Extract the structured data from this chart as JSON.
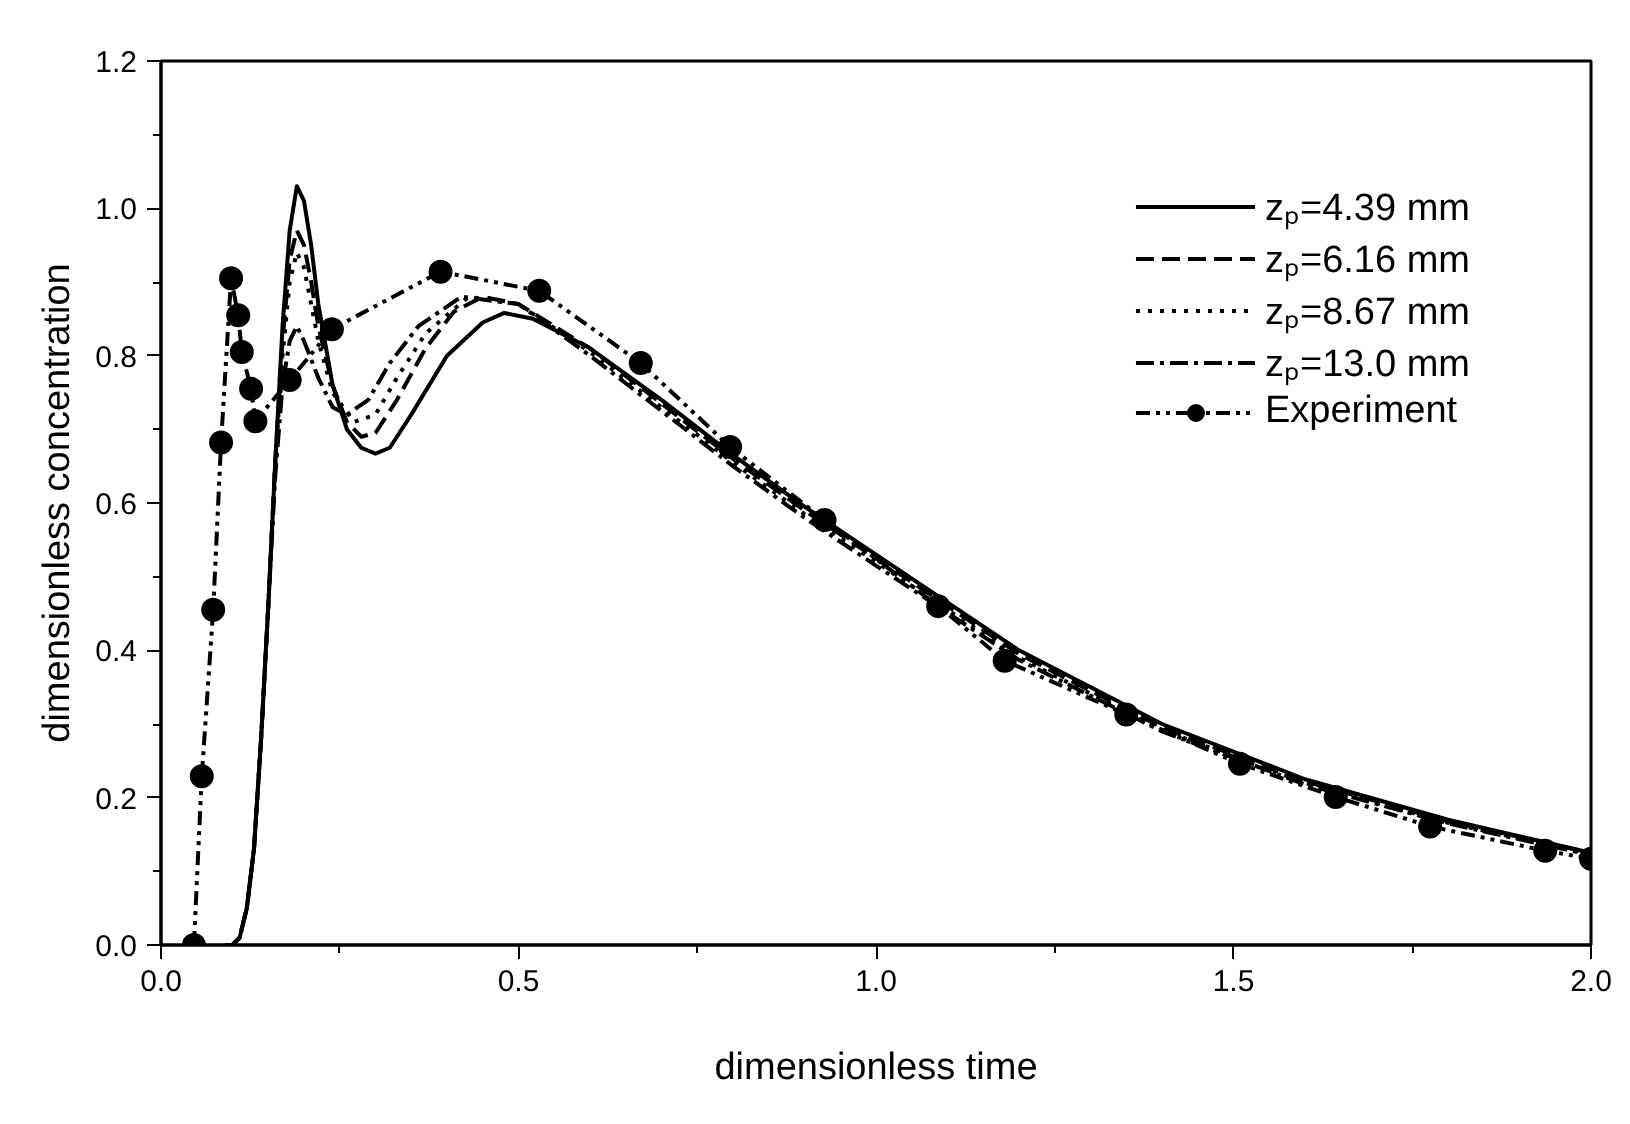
{
  "chart_data": {
    "type": "line",
    "xlabel": "dimensionless time",
    "ylabel": "dimensionless concentration",
    "xlim": [
      0,
      2.0
    ],
    "ylim": [
      0,
      1.2
    ],
    "xticks": [
      {
        "value": 0,
        "label": "0.0"
      },
      0.5,
      {
        "value": 1,
        "label": "1.0"
      },
      1.5,
      {
        "value": 2,
        "label": "2.0"
      }
    ],
    "yticks": [
      {
        "value": 0,
        "label": "0.0"
      },
      0.2,
      0.4,
      0.6,
      0.8,
      {
        "value": 1,
        "label": "1.0"
      },
      1.2
    ],
    "grid": false,
    "legend": "top right",
    "series": [
      {
        "name": "zₚ=4.39 mm",
        "color": "#000000",
        "line_style": "solid",
        "marker": "none",
        "x": [
          0.09,
          0.1,
          0.11,
          0.12,
          0.13,
          0.14,
          0.15,
          0.16,
          0.17,
          0.18,
          0.19,
          0.2,
          0.21,
          0.22,
          0.24,
          0.26,
          0.28,
          0.3,
          0.32,
          0.35,
          0.4,
          0.45,
          0.48,
          0.52,
          0.6,
          0.7,
          0.8,
          0.9,
          1.0,
          1.2,
          1.4,
          1.6,
          1.8,
          2.0
        ],
        "values": [
          0,
          0,
          0.01,
          0.05,
          0.13,
          0.28,
          0.46,
          0.66,
          0.84,
          0.97,
          1.03,
          1.01,
          0.95,
          0.87,
          0.76,
          0.7,
          0.675,
          0.667,
          0.675,
          0.72,
          0.8,
          0.845,
          0.858,
          0.85,
          0.81,
          0.74,
          0.665,
          0.595,
          0.53,
          0.4,
          0.3,
          0.225,
          0.17,
          0.125
        ]
      },
      {
        "name": "zₚ=6.16 mm",
        "color": "#000000",
        "line_style": "dashed",
        "marker": "none",
        "x": [
          0.09,
          0.1,
          0.11,
          0.12,
          0.13,
          0.14,
          0.15,
          0.16,
          0.17,
          0.18,
          0.19,
          0.2,
          0.21,
          0.22,
          0.24,
          0.26,
          0.28,
          0.3,
          0.33,
          0.37,
          0.41,
          0.45,
          0.5,
          0.6,
          0.7,
          0.8,
          0.9,
          1.0,
          1.2,
          1.4,
          1.6,
          1.8,
          2.0
        ],
        "values": [
          0,
          0,
          0.01,
          0.05,
          0.13,
          0.28,
          0.46,
          0.66,
          0.82,
          0.93,
          0.97,
          0.95,
          0.9,
          0.84,
          0.76,
          0.71,
          0.69,
          0.695,
          0.74,
          0.81,
          0.86,
          0.88,
          0.87,
          0.81,
          0.735,
          0.66,
          0.59,
          0.525,
          0.395,
          0.295,
          0.222,
          0.168,
          0.125
        ]
      },
      {
        "name": "zₚ=8.67 mm",
        "color": "#000000",
        "line_style": "dotted",
        "marker": "none",
        "x": [
          0.09,
          0.1,
          0.11,
          0.12,
          0.13,
          0.14,
          0.15,
          0.16,
          0.17,
          0.18,
          0.19,
          0.2,
          0.21,
          0.22,
          0.24,
          0.27,
          0.3,
          0.33,
          0.37,
          0.43,
          0.5,
          0.6,
          0.7,
          0.8,
          0.9,
          1.0,
          1.2,
          1.4,
          1.6,
          1.8,
          2.0
        ],
        "values": [
          0,
          0,
          0.01,
          0.05,
          0.13,
          0.28,
          0.46,
          0.66,
          0.8,
          0.9,
          0.94,
          0.92,
          0.87,
          0.82,
          0.75,
          0.71,
          0.72,
          0.77,
          0.83,
          0.88,
          0.87,
          0.805,
          0.73,
          0.655,
          0.585,
          0.52,
          0.39,
          0.292,
          0.22,
          0.166,
          0.123
        ]
      },
      {
        "name": "zₚ=13.0 mm",
        "color": "#000000",
        "line_style": "dashdot",
        "marker": "none",
        "x": [
          0.09,
          0.1,
          0.11,
          0.12,
          0.13,
          0.14,
          0.15,
          0.16,
          0.17,
          0.18,
          0.19,
          0.2,
          0.22,
          0.24,
          0.26,
          0.29,
          0.32,
          0.36,
          0.42,
          0.5,
          0.6,
          0.7,
          0.8,
          0.9,
          1.0,
          1.2,
          1.4,
          1.6,
          1.8,
          2.0
        ],
        "values": [
          0,
          0,
          0.01,
          0.05,
          0.13,
          0.28,
          0.46,
          0.64,
          0.76,
          0.82,
          0.84,
          0.82,
          0.77,
          0.73,
          0.72,
          0.74,
          0.79,
          0.84,
          0.88,
          0.87,
          0.8,
          0.725,
          0.65,
          0.58,
          0.515,
          0.387,
          0.29,
          0.218,
          0.165,
          0.122
        ]
      },
      {
        "name": "Experiment",
        "color": "#000000",
        "line_style": "dashdotdot",
        "marker": "circle",
        "x": [
          0.046,
          0.057,
          0.073,
          0.084,
          0.098,
          0.108,
          0.113,
          0.126,
          0.132,
          0.18,
          0.239,
          0.391,
          0.529,
          0.671,
          0.796,
          0.928,
          1.087,
          1.18,
          1.35,
          1.509,
          1.643,
          1.775,
          1.936,
          2.0
        ],
        "values": [
          0,
          0.229,
          0.455,
          0.682,
          0.905,
          0.855,
          0.805,
          0.755,
          0.711,
          0.767,
          0.836,
          0.914,
          0.888,
          0.79,
          0.676,
          0.577,
          0.46,
          0.386,
          0.313,
          0.246,
          0.201,
          0.161,
          0.128,
          0.117
        ]
      }
    ]
  }
}
